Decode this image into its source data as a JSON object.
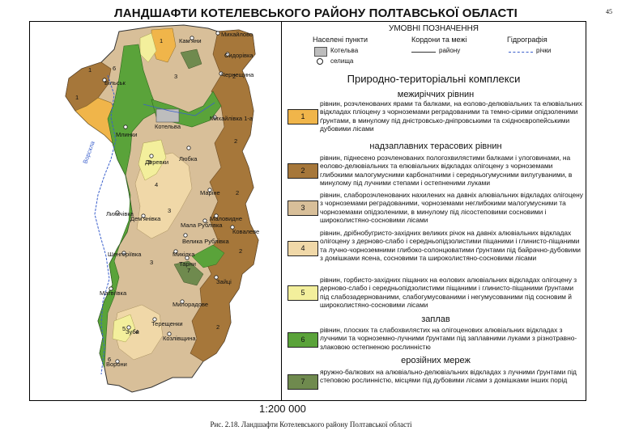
{
  "title": "ЛАНДШАФТИ КОТЕЛЕВСЬКОГО РАЙОНУ ПОЛТАВСЬКОЇ ОБЛАСТІ",
  "page_number": "45",
  "legend": {
    "heading": "УМОВНІ ПОЗНАЧЕННЯ",
    "col_settlements": "Населені пункти",
    "col_borders": "Кордони та межі",
    "col_hydro": "Гідрографія",
    "sym_town": "Котельва",
    "sym_village": "селища",
    "sym_border": "району",
    "sym_river": "річки",
    "complexes_title": "Природно-територіальні комплекси",
    "categories": {
      "interfluve": "межиріччих рівнин",
      "terrace": "надзаплавних терасових рівнин",
      "floodplain": "заплав",
      "erosion": "ерозійних мереж"
    },
    "items": [
      {
        "num": "1",
        "color": "#f0b54a",
        "text": "рівнин, розчленованих ярами та балками, на еолово-делювіальних та елювіальних відкладах пліоцену з чорноземами реградованими та темно-сірими опідзоленими ґрунтами, в минулому під дністровсько-дніпровськими та східноєвропейськими дубовими лісами"
      },
      {
        "num": "2",
        "color": "#a6773a",
        "text": "рівнин, піднесено розчленованих пологохвилястими балками і улоговинами, на еолово-делювіальних та елювіальних відкладах олігоцену з чорноземами глибокими малогумусними карбонатними і середньогумусними вилугуваними, в минулому під лучними степами і остепненими луками"
      },
      {
        "num": "3",
        "color": "#d8bf99",
        "text": "рівнин, слаборозчленованих нахилених на давніх алювіальних відкладах олігоцену з чорноземами реградованими, чорноземами неглибокими малогумусними та чорноземами опідзоленими, в минулому під лісостеповими сосновими і широколистяно-сосновими лісами"
      },
      {
        "num": "4",
        "color": "#f0d8a8",
        "text": "рівнин, дрібнобугристо-західних великих річок на давніх алювіальних відкладах олігоцену з дерново-слабо і середньопідзолистими піщаними і глинисто-піщаними та лучно-чорноземними глибоко-солонцюватими ґрунтами під байрачно-дубовими з домішками ясена, сосновими та широколистяно-сосновими лісами"
      },
      {
        "num": "5",
        "color": "#f3ef9c",
        "text": "рівнин, горбисто-західних піщаних на еолових алювіальних відкладах олігоцену з дерново-слабо і середньопідзолистими піщаними і глинисто-піщаними ґрунтами під слабозадернованими, слабогумусованими і негумусованими під сосновим й широколистяно-сосновими лісами"
      },
      {
        "num": "6",
        "color": "#5aa33a",
        "text": "рівнин, плоских та слабохвилястих на олігоценових алювіальних відкладах з лучними та чорноземно-лучними ґрунтами під заплавними луками з різнотравно-злаковою остепненою рослинністю"
      },
      {
        "num": "7",
        "color": "#6f8a4e",
        "text": "яружно-балкових на алювіально-делювіальних відкладах з лучними ґрунтами під степовою рослинністю, місцями під дубовими лісами з домішками інших порід"
      }
    ]
  },
  "map": {
    "settlements": [
      "Кам'яни",
      "Михайлово",
      "Сидорівка",
      "Чернещина",
      "Більськ",
      "Котельва",
      "Михайлівка 1-а",
      "Млинки",
      "Деревки",
      "Любка",
      "Ворскла",
      "Маріне",
      "Лихачівка",
      "Дем'янівка",
      "Мала Рублівка",
      "Маловидне",
      "Ковалеве",
      "Велика Рублівка",
      "Шенгеріївка",
      "Микілка",
      "Тарни",
      "Зайці",
      "Матвіївка",
      "Милорадове",
      "Терещенки",
      "Зуби",
      "Козлівщина",
      "Ворони"
    ]
  },
  "scale": "1:200 000",
  "caption": "Рис. 2.18. Ландшафти Котелевського району Полтавської області"
}
